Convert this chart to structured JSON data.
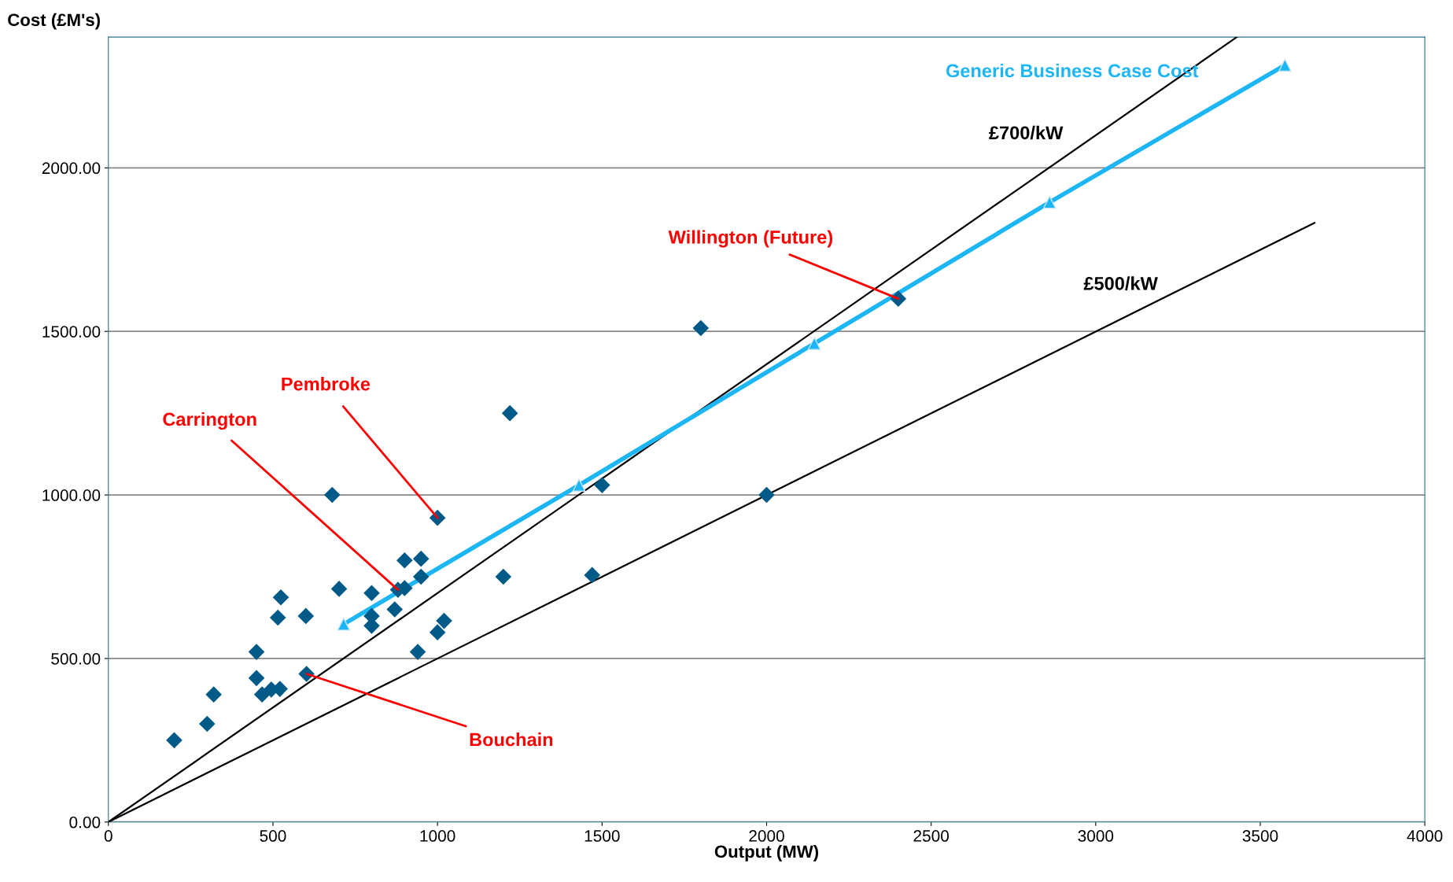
{
  "chart_data": {
    "type": "scatter",
    "xlabel": "Output (MW)",
    "ylabel": "Cost (£M's)",
    "xlim": [
      0,
      4000
    ],
    "ylim": [
      0,
      2400
    ],
    "xticks": [
      0,
      500,
      1000,
      1500,
      2000,
      2500,
      3000,
      3500,
      4000
    ],
    "yticks": [
      {
        "value": 0,
        "label": "0.00"
      },
      {
        "value": 500,
        "label": "500.00"
      },
      {
        "value": 1000,
        "label": "1000.00"
      },
      {
        "value": 1500,
        "label": "1500.00"
      },
      {
        "value": 2000,
        "label": "2000.00"
      }
    ],
    "grid": "y",
    "legend": false,
    "series": [
      {
        "color": "#005a87",
        "marker": "diamond",
        "x": [
          200,
          300,
          320,
          450,
          450,
          467,
          495,
          521,
          515,
          524,
          600,
          602,
          680,
          701,
          800,
          800,
          800,
          870,
          880,
          900,
          900,
          950,
          950,
          940,
          1000,
          1000,
          1020,
          1200,
          1220,
          1470,
          1500,
          1800,
          2000,
          2400
        ],
        "values": [
          250,
          300,
          390,
          520,
          440,
          390,
          405,
          407,
          625,
          687,
          630,
          453,
          1000,
          713,
          700,
          630,
          600,
          650,
          710,
          715,
          800,
          805,
          750,
          520,
          930,
          580,
          615,
          750,
          1250,
          755,
          1030,
          1510,
          1000,
          1600
        ]
      },
      {
        "type": "line",
        "name": "£700/kW",
        "color": "#000000",
        "marker": "none",
        "x": [
          0,
          3429
        ],
        "values": [
          0,
          2400
        ]
      },
      {
        "type": "line",
        "name": "£500/kW",
        "color": "#000000",
        "marker": "none",
        "x": [
          0,
          3665
        ],
        "values": [
          0,
          1832
        ]
      },
      {
        "type": "line",
        "name": "Generic Business Case Cost",
        "color": "#1cb5f5",
        "marker": "triangle",
        "x": [
          715,
          1430,
          2145,
          2860,
          3575
        ],
        "values": [
          605,
          1030,
          1463,
          1895,
          2314
        ]
      }
    ],
    "annotations": [
      {
        "text": "Pembroke",
        "x": 1000,
        "y": 930
      },
      {
        "text": "Carrington",
        "x": 880,
        "y": 710
      },
      {
        "text": "Willington (Future)",
        "x": 2400,
        "y": 1600
      },
      {
        "text": "Bouchain",
        "x": 602,
        "y": 453
      }
    ]
  }
}
